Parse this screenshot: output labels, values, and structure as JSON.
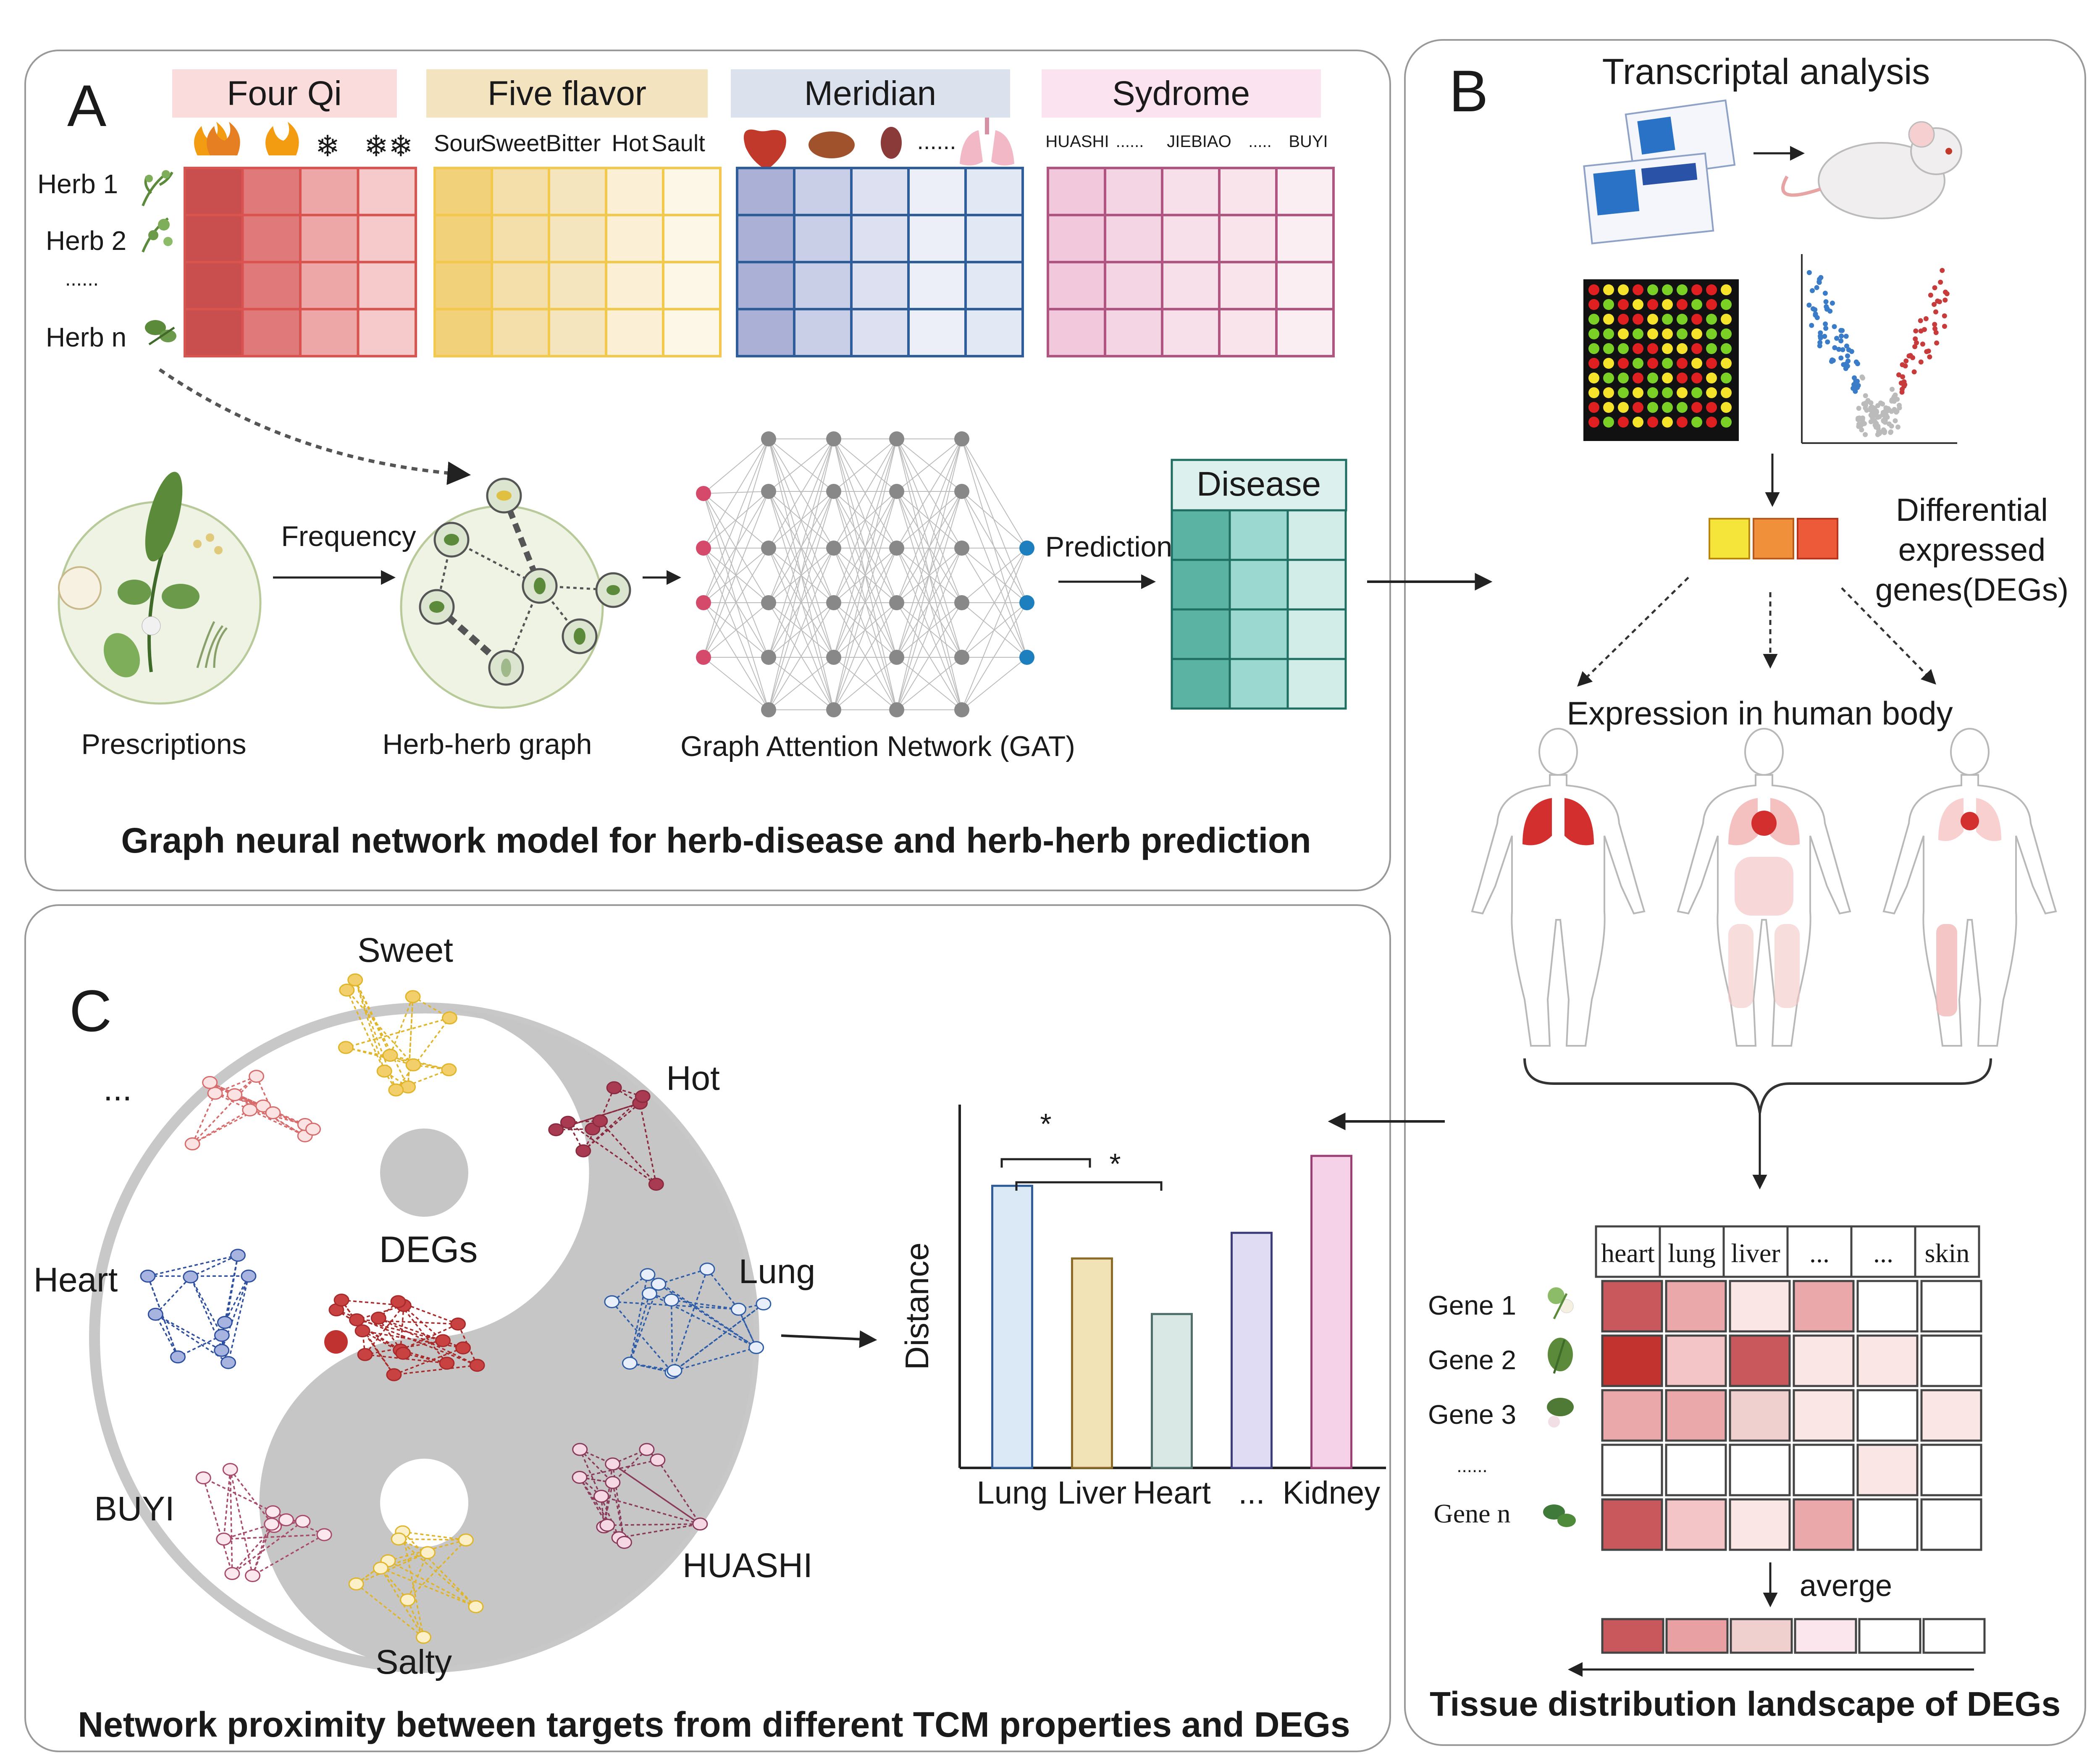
{
  "panel_a": {
    "letter": "A",
    "headers": {
      "four_qi": "Four Qi",
      "five_flavor": "Five flavor",
      "meridian": "Meridian",
      "syndrome": "Sydrome"
    },
    "flavors": [
      "Sour",
      "Sweet",
      "Bitter",
      "Hot",
      "Sault"
    ],
    "meridian_dots": "......",
    "syndrome_labels": [
      "HUASHI",
      "......",
      "JIEBIAO",
      ".....",
      "BUYI"
    ],
    "herbs": [
      "Herb 1",
      "Herb 2",
      "......",
      "Herb n"
    ],
    "labels": {
      "frequency": "Frequency",
      "prescriptions": "Prescriptions",
      "herb_graph": "Herb-herb graph",
      "gat": "Graph Attention Network (GAT)",
      "prediction": "Prediction",
      "disease": "Disease"
    },
    "caption": "Graph neural network model for herb-disease and herb-herb prediction",
    "colors": {
      "four_qi": "#d9534f",
      "five_flavor": "#f2c94c",
      "meridian": "#2f5d9a",
      "syndrome": "#b0557f",
      "disease": "#5bbfb0"
    }
  },
  "panel_b": {
    "letter": "B",
    "title": "Transcriptal analysis",
    "degs_label": [
      "Differential",
      "expressed",
      "genes(DEGs)"
    ],
    "expression_label": "Expression in human body",
    "tissues": [
      "heart",
      "lung",
      "liver",
      "...",
      "...",
      "skin"
    ],
    "genes": [
      "Gene 1",
      "Gene 2",
      "Gene 3",
      "......",
      "Gene n"
    ],
    "average_label": "averge",
    "caption": "Tissue distribution landscape of DEGs"
  },
  "panel_c": {
    "letter": "C",
    "yinyang_labels": {
      "sweet": "Sweet",
      "hot": "Hot",
      "dots": "...",
      "degs": "DEGs",
      "heart": "Heart",
      "lung": "Lung",
      "buyi": "BUYI",
      "huashi": "HUASHI",
      "salty": "Salty"
    },
    "caption": "Network proximity between targets from different TCM properties and DEGs",
    "chart_data": {
      "type": "bar",
      "categories": [
        "Lung",
        "Liver",
        "Heart",
        "...",
        "Kidney"
      ],
      "values": [
        0.66,
        0.49,
        0.36,
        0.55,
        0.73
      ],
      "ylabel": "Distance",
      "ylim": [
        0,
        0.85
      ],
      "colors": [
        "#dbe9f7",
        "#f1e3b6",
        "#d9e8e4",
        "#e0dcf3",
        "#f6d2e8"
      ],
      "edge_colors": [
        "#2f5d9a",
        "#8c6a2a",
        "#4f6f6a",
        "#3d3d7a",
        "#9a3f74"
      ],
      "significance": [
        {
          "from": "Lung",
          "to": "Liver",
          "label": "*"
        },
        {
          "from": "Lung",
          "to": "Heart",
          "label": "*"
        }
      ]
    }
  }
}
